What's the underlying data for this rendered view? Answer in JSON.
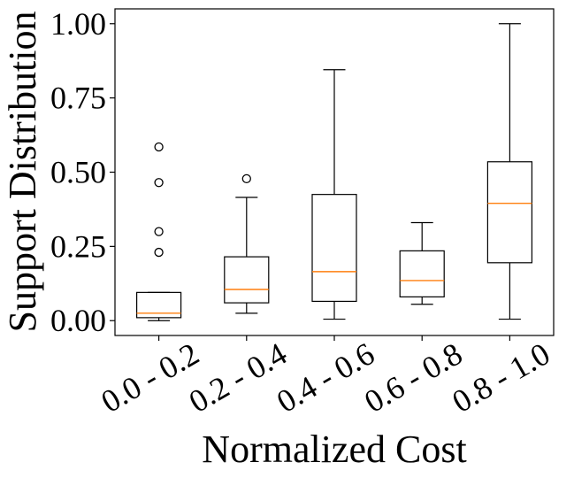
{
  "chart_data": {
    "type": "boxplot",
    "title": "",
    "xlabel": "Normalized Cost",
    "ylabel": "Support Distribution",
    "ylim": [
      -0.05,
      1.05
    ],
    "yticks": [
      0.0,
      0.25,
      0.5,
      0.75,
      1.0
    ],
    "ytick_labels": [
      "0.00",
      "0.25",
      "0.50",
      "0.75",
      "1.00"
    ],
    "categories": [
      "0.0 - 0.2",
      "0.2 - 0.4",
      "0.4 - 0.6",
      "0.6 - 0.8",
      "0.8 - 1.0"
    ],
    "boxes": [
      {
        "whisker_low": 0.0,
        "q1": 0.01,
        "median": 0.025,
        "q3": 0.095,
        "whisker_high": 0.095,
        "outliers": [
          0.23,
          0.3,
          0.465,
          0.585
        ]
      },
      {
        "whisker_low": 0.025,
        "q1": 0.06,
        "median": 0.105,
        "q3": 0.215,
        "whisker_high": 0.415,
        "outliers": [
          0.478
        ]
      },
      {
        "whisker_low": 0.005,
        "q1": 0.065,
        "median": 0.165,
        "q3": 0.425,
        "whisker_high": 0.845,
        "outliers": []
      },
      {
        "whisker_low": 0.055,
        "q1": 0.08,
        "median": 0.135,
        "q3": 0.235,
        "whisker_high": 0.33,
        "outliers": []
      },
      {
        "whisker_low": 0.005,
        "q1": 0.195,
        "median": 0.395,
        "q3": 0.535,
        "whisker_high": 1.0,
        "outliers": []
      }
    ],
    "colors": {
      "box": "#000000",
      "median": "#ff7f0e",
      "outlier": "#000000"
    }
  }
}
